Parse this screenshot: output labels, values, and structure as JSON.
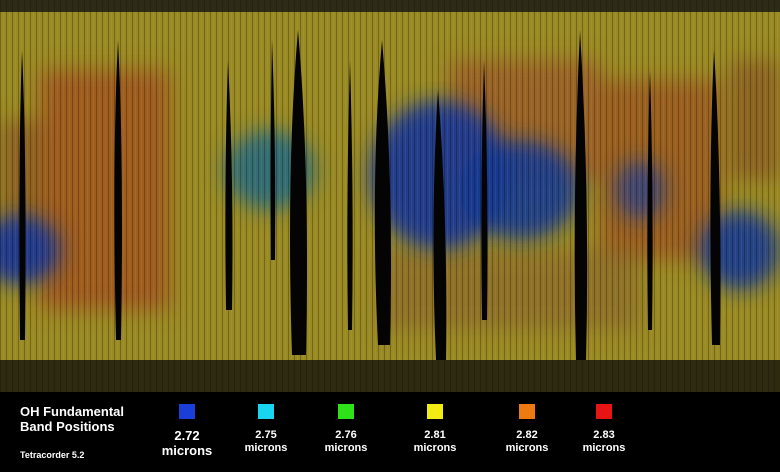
{
  "legend": {
    "title": "OH Fundamental Band Positions",
    "subtitle": "Tetracorder 5.2",
    "unit": "microns",
    "items": [
      {
        "value": "2.72",
        "color": "#1a3fd8"
      },
      {
        "value": "2.75",
        "color": "#19d6f0"
      },
      {
        "value": "2.76",
        "color": "#2ee21a"
      },
      {
        "value": "2.81",
        "color": "#f2ec12"
      },
      {
        "value": "2.82",
        "color": "#f07a12"
      },
      {
        "value": "2.83",
        "color": "#e81414"
      }
    ]
  },
  "map": {
    "palette": {
      "background": "#9c8a22",
      "blue_region": "#1e3a8a",
      "orange_region": "#a85a1e",
      "gap": "#050505"
    }
  }
}
